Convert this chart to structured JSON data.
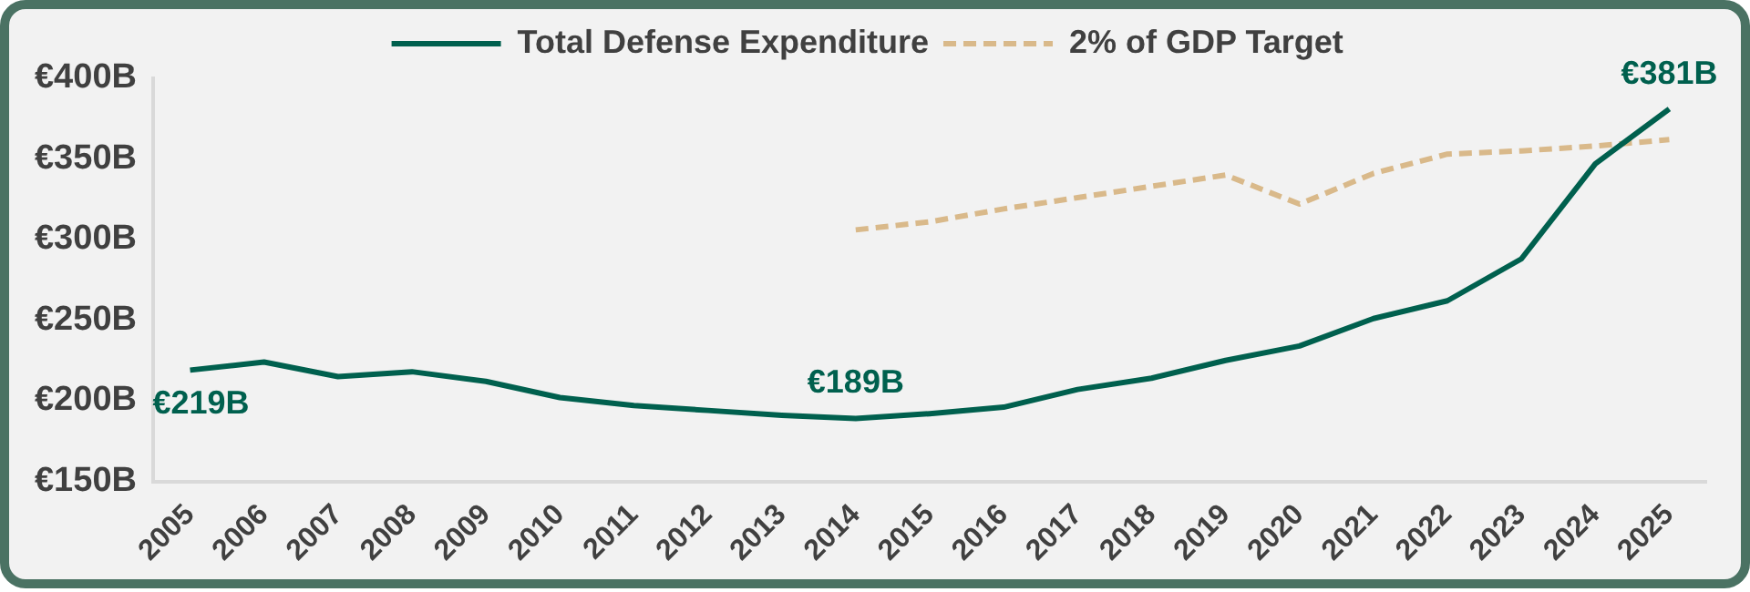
{
  "chart_data": {
    "type": "line",
    "categories": [
      "2005",
      "2006",
      "2007",
      "2008",
      "2009",
      "2010",
      "2011",
      "2012",
      "2013",
      "2014",
      "2015",
      "2016",
      "2017",
      "2018",
      "2019",
      "2020",
      "2021",
      "2022",
      "2023",
      "2024",
      "2025"
    ],
    "series": [
      {
        "name": "Total Defense Expenditure",
        "color": "#00604e",
        "line_style": "solid",
        "values": [
          219,
          224,
          215,
          218,
          212,
          202,
          197,
          194,
          191,
          189,
          192,
          196,
          207,
          214,
          225,
          234,
          251,
          262,
          288,
          347,
          381
        ],
        "value_labels": [
          "€219B",
          null,
          null,
          null,
          null,
          null,
          null,
          null,
          null,
          "€189B",
          null,
          null,
          null,
          null,
          null,
          null,
          null,
          null,
          null,
          null,
          "€381B"
        ]
      },
      {
        "name": "2% of GDP Target",
        "color": "#d9b98a",
        "line_style": "dashed",
        "values": [
          null,
          null,
          null,
          null,
          null,
          null,
          null,
          null,
          null,
          306,
          311,
          319,
          326,
          333,
          340,
          322,
          341,
          353,
          355,
          358,
          362
        ]
      }
    ],
    "ylim": [
      150,
      400
    ],
    "yticks": [
      {
        "value": 150,
        "label": "€150B"
      },
      {
        "value": 200,
        "label": "€200B"
      },
      {
        "value": 250,
        "label": "€250B"
      },
      {
        "value": 300,
        "label": "€300B"
      },
      {
        "value": 350,
        "label": "€350B"
      },
      {
        "value": 400,
        "label": "€400B"
      }
    ],
    "grid": false,
    "legend": "top",
    "marker": "none"
  }
}
